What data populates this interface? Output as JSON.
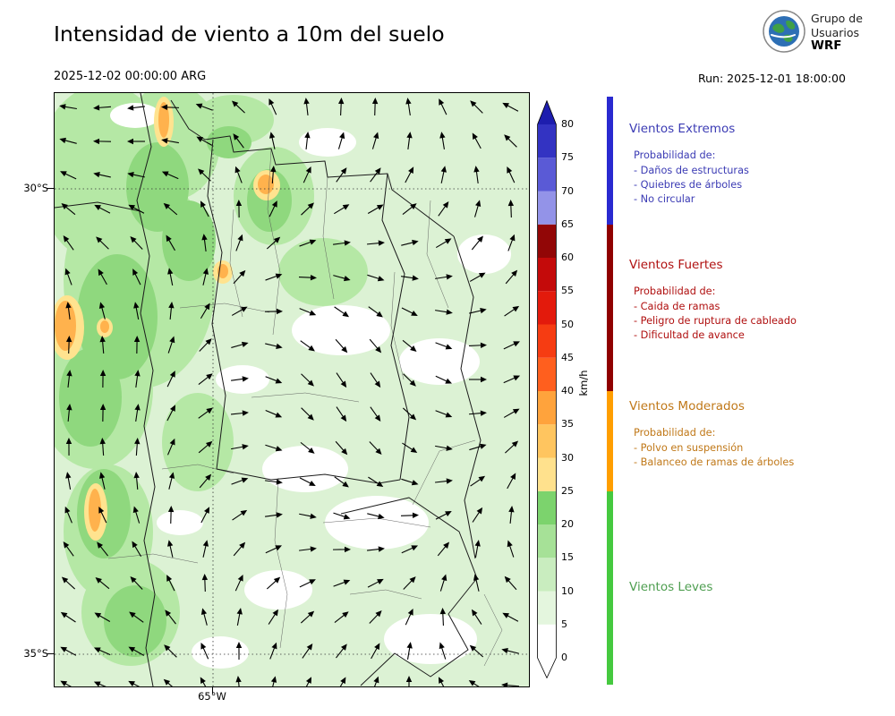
{
  "header": {
    "title": "Intensidad de viento a 10m del suelo",
    "valid_time": "2025-12-02 00:00:00 ARG",
    "run_label": "Run: 2025-12-01 18:00:00",
    "logo_text": {
      "line1": "Grupo de",
      "line2": "Usuarios",
      "line3": "WRF"
    }
  },
  "map": {
    "lat_labels": [
      "30°S",
      "35°S"
    ],
    "lon_label": "65°W"
  },
  "colorbar": {
    "unit": "km/h",
    "ticks": [
      "0",
      "5",
      "10",
      "15",
      "20",
      "25",
      "30",
      "35",
      "40",
      "45",
      "50",
      "55",
      "60",
      "65",
      "70",
      "75",
      "80"
    ],
    "segment_colors": [
      "#ffffff",
      "#e4f6de",
      "#c9edbf",
      "#a6e197",
      "#7cd36d",
      "#ffe18d",
      "#ffc55f",
      "#ffa33c",
      "#ff5f1e",
      "#f63c12",
      "#e31a0c",
      "#c40a0a",
      "#920606",
      "#9393e8",
      "#5a5ad6",
      "#3333c2"
    ],
    "extend_high_color": "#1d1dae",
    "extend_low_color": "#ffffff"
  },
  "legend": {
    "sections": [
      {
        "title": "Vientos Extremos",
        "text_color": "#3b3bb4",
        "bar_color": "#2a2ad0",
        "range_kmh": "65+",
        "prob_header": "Probabilidad de:",
        "items": [
          "- Daños de estructuras",
          "- Quiebres de árboles",
          "- No circular"
        ]
      },
      {
        "title": "Vientos Fuertes",
        "text_color": "#b01010",
        "bar_color": "#8f0000",
        "range_kmh": "40-65",
        "prob_header": "Probabilidad de:",
        "items": [
          "- Caida de ramas",
          "- Peligro de ruptura de cableado",
          "- Dificultad de avance"
        ]
      },
      {
        "title": "Vientos Moderados",
        "text_color": "#c07818",
        "bar_color": "#ff9e00",
        "range_kmh": "25-40",
        "prob_header": "Probabilidad de:",
        "items": [
          "- Polvo en suspensión",
          "- Balanceo de ramas de árboles"
        ]
      },
      {
        "title": "Vientos Leves",
        "text_color": "#4e9e50",
        "bar_color": "#45c93f",
        "range_kmh": "0-25",
        "prob_header": "",
        "items": []
      }
    ]
  },
  "chart_data": {
    "type": "heatmap",
    "title": "Intensidad de viento a 10m del suelo",
    "valid_time": "2025-12-02 00:00:00 ARG",
    "run": "2025-12-01 18:00:00",
    "field": "wind speed at 10 m above ground",
    "units": "km/h",
    "colorbar_ticks": [
      0,
      5,
      10,
      15,
      20,
      25,
      30,
      35,
      40,
      45,
      50,
      55,
      60,
      65,
      70,
      75,
      80
    ],
    "colorbar_extend": "both",
    "lat_gridlines": [
      "30°S",
      "35°S"
    ],
    "lon_gridlines": [
      "65°W"
    ],
    "overlay": "wind direction quiver arrows",
    "field_summary": "mostly 5-25 km/h light winds (green shading) with scattered 0-5 km/h white patches; local 25-40 km/h orange/yellow maxima along the west and north of the domain",
    "categories_legend": [
      {
        "label": "Vientos Extremos",
        "range_kmh": "65+"
      },
      {
        "label": "Vientos Fuertes",
        "range_kmh": "40-65"
      },
      {
        "label": "Vientos Moderados",
        "range_kmh": "25-40"
      },
      {
        "label": "Vientos Leves",
        "range_kmh": "0-25"
      }
    ]
  }
}
